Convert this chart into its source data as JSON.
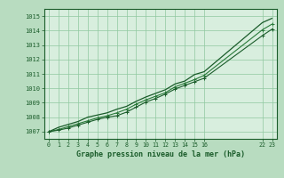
{
  "bg_color": "#b8dcc0",
  "plot_bg_color": "#d8eede",
  "grid_color": "#90c8a0",
  "line_color_dark": "#1a5c2a",
  "line_color_mid": "#2a7a3a",
  "title": "Graphe pression niveau de la mer (hPa)",
  "ylim": [
    1006.5,
    1015.5
  ],
  "xlim": [
    -0.5,
    23.5
  ],
  "yticks": [
    1007,
    1008,
    1009,
    1010,
    1011,
    1012,
    1013,
    1014,
    1015
  ],
  "xticks": [
    0,
    1,
    2,
    3,
    4,
    5,
    6,
    7,
    8,
    9,
    10,
    11,
    12,
    13,
    14,
    15,
    16,
    22,
    23
  ],
  "xtick_labels": [
    "0",
    "1",
    "2",
    "3",
    "4",
    "5",
    "6",
    "7",
    "8",
    "9",
    "10",
    "11",
    "12",
    "13",
    "14",
    "15",
    "16",
    "22",
    "23"
  ],
  "hours": [
    0,
    1,
    2,
    3,
    4,
    5,
    6,
    7,
    8,
    9,
    10,
    11,
    12,
    13,
    14,
    15,
    16,
    22,
    23
  ],
  "line_upper": [
    1007.0,
    1007.3,
    1007.5,
    1007.7,
    1008.0,
    1008.15,
    1008.3,
    1008.55,
    1008.75,
    1009.1,
    1009.4,
    1009.65,
    1009.9,
    1010.3,
    1010.5,
    1010.95,
    1011.15,
    1014.55,
    1014.85
  ],
  "line_mid": [
    1007.0,
    1007.15,
    1007.35,
    1007.55,
    1007.75,
    1007.95,
    1008.1,
    1008.3,
    1008.55,
    1008.9,
    1009.2,
    1009.45,
    1009.7,
    1010.1,
    1010.35,
    1010.6,
    1010.9,
    1014.05,
    1014.45
  ],
  "line_lower": [
    1007.0,
    1007.1,
    1007.25,
    1007.45,
    1007.65,
    1007.85,
    1008.0,
    1008.1,
    1008.35,
    1008.7,
    1009.05,
    1009.3,
    1009.6,
    1009.95,
    1010.2,
    1010.45,
    1010.7,
    1013.65,
    1014.1
  ]
}
